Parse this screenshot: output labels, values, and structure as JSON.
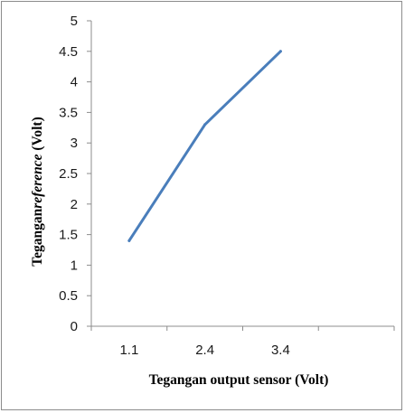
{
  "chart_data": {
    "type": "line",
    "categories": [
      "1.1",
      "2.4",
      "3.4"
    ],
    "series": [
      {
        "values": [
          1.4,
          3.3,
          4.5
        ]
      }
    ],
    "xlabel": "Tegangan output sensor (Volt)",
    "ylabel_prefix": "Tegangan",
    "ylabel_italic": "reference",
    "ylabel_suffix": " (Volt)",
    "ylim": [
      0,
      5
    ],
    "yticks": [
      "0",
      "0.5",
      "1",
      "1.5",
      "2",
      "2.5",
      "3",
      "3.5",
      "4",
      "4.5",
      "5"
    ],
    "grid": false,
    "line_color": "#4a7ebb"
  }
}
